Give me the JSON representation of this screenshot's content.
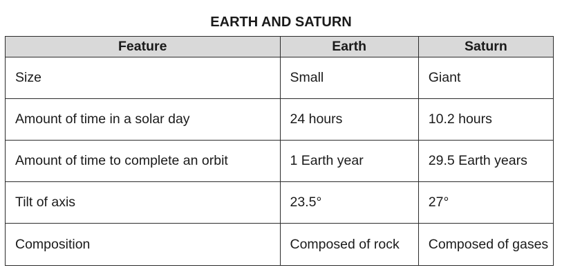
{
  "title": "EARTH AND SATURN",
  "table": {
    "headers": [
      "Feature",
      "Earth",
      "Saturn"
    ],
    "rows": [
      {
        "feature": "Size",
        "earth": "Small",
        "saturn": "Giant"
      },
      {
        "feature": "Amount of time in a solar day",
        "earth": "24 hours",
        "saturn": "10.2 hours"
      },
      {
        "feature": "Amount of time to complete an orbit",
        "earth": "1 Earth year",
        "saturn": "29.5 Earth years"
      },
      {
        "feature": "Tilt of axis",
        "earth": "23.5°",
        "saturn": "27°"
      },
      {
        "feature": "Composition",
        "earth": "Composed of rock",
        "saturn": "Composed of gases"
      }
    ]
  },
  "colors": {
    "header_bg": "#d9d9d9",
    "border": "#2b2b2b",
    "text": "#1a1a1a"
  }
}
